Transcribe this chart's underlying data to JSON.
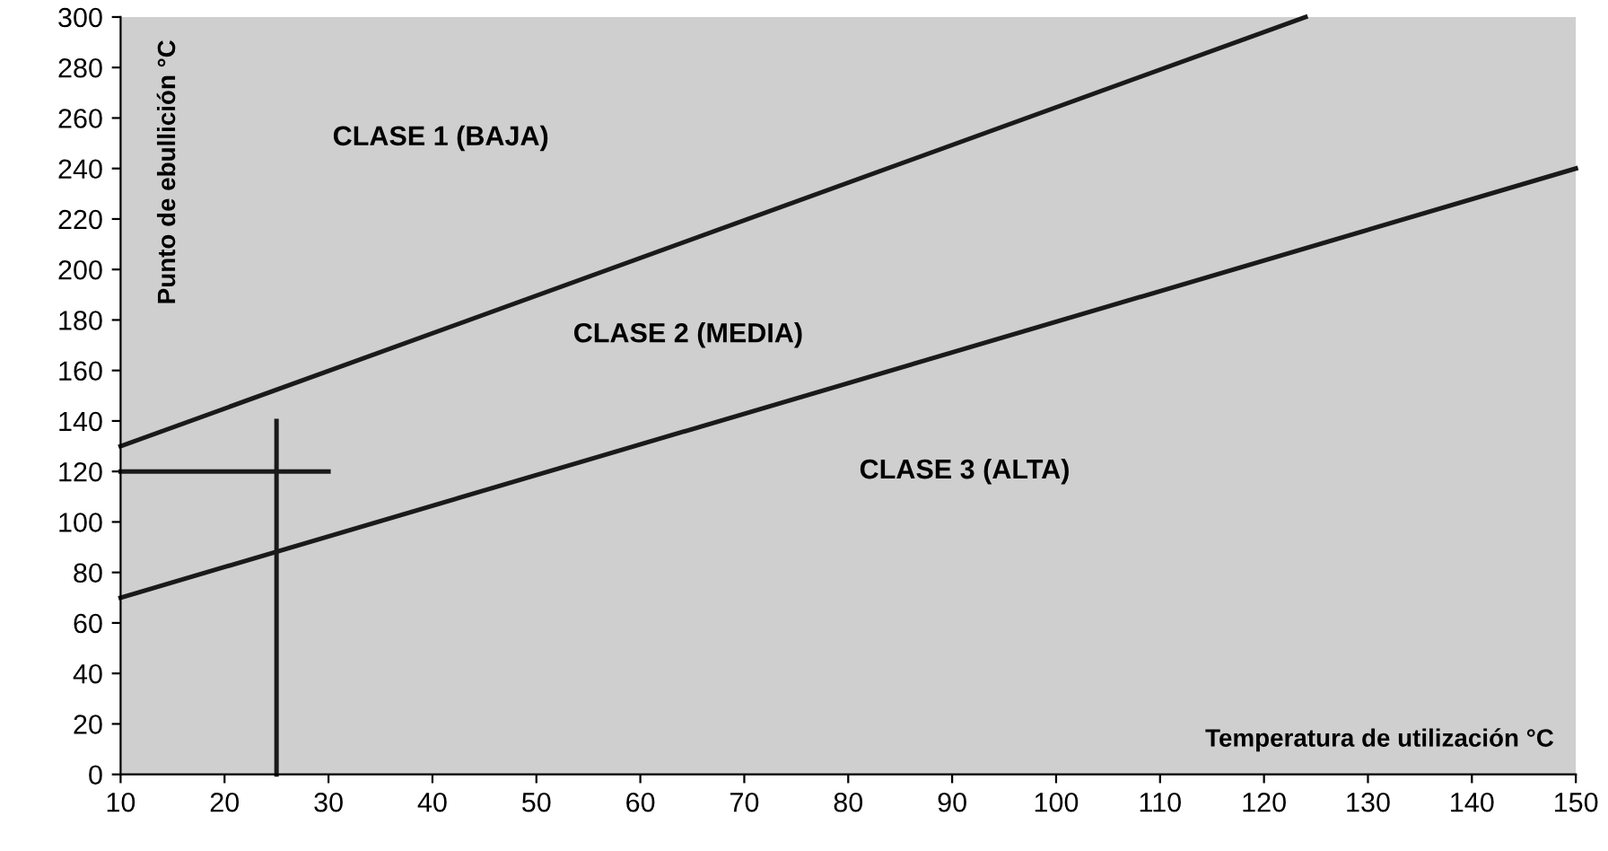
{
  "chart_data": {
    "type": "line",
    "xlabel": "Temperatura de utilización °C",
    "ylabel": "Punto de ebullición °C",
    "annotations": [
      "CLASE 1 (BAJA)",
      "CLASE 2 (MEDIA)",
      "CLASE 3 (ALTA)"
    ],
    "series": [
      {
        "color": "#1a1a1a",
        "x": [
          10,
          124
        ],
        "values": [
          130,
          300
        ]
      },
      {
        "color": "#1a1a1a",
        "x": [
          10,
          150
        ],
        "values": [
          70,
          240
        ]
      },
      {
        "color": "#1a1a1a",
        "x": [
          25,
          25
        ],
        "values": [
          0,
          140
        ]
      },
      {
        "color": "#1a1a1a",
        "x": [
          10,
          30
        ],
        "values": [
          120,
          120
        ]
      }
    ],
    "xlim": [
      10,
      150
    ],
    "ylim": [
      0,
      300
    ],
    "xticks": [
      10,
      20,
      30,
      40,
      50,
      60,
      70,
      80,
      90,
      100,
      110,
      120,
      130,
      140,
      150
    ],
    "yticks": [
      0,
      20,
      40,
      60,
      80,
      100,
      120,
      140,
      160,
      180,
      200,
      220,
      240,
      260,
      280,
      300
    ],
    "grid": false,
    "legend": false,
    "marker": "none",
    "line_style": "solid"
  }
}
